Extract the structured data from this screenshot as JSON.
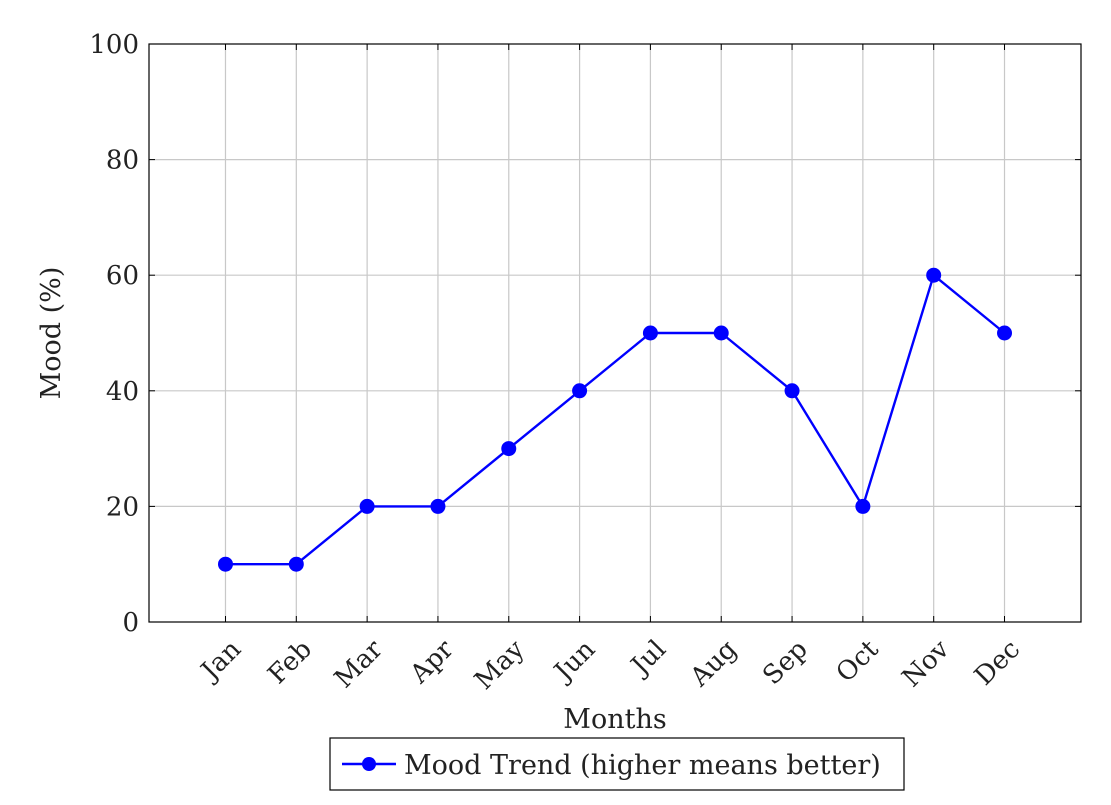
{
  "chart_data": {
    "type": "line",
    "title": "",
    "xlabel": "Months",
    "ylabel": "Mood (%)",
    "categories": [
      "Jan",
      "Feb",
      "Mar",
      "Apr",
      "May",
      "Jun",
      "Jul",
      "Aug",
      "Sep",
      "Oct",
      "Nov",
      "Dec"
    ],
    "ylim": [
      0,
      100
    ],
    "yticks": [
      "0",
      "20",
      "40",
      "60",
      "80",
      "100"
    ],
    "grid": true,
    "legend_position": "bottom-center",
    "series": [
      {
        "name": "Mood Trend (higher means better)",
        "color": "#0000ff",
        "marker": "circle",
        "values": [
          10,
          10,
          20,
          20,
          30,
          40,
          50,
          50,
          40,
          20,
          60,
          50
        ]
      }
    ]
  }
}
